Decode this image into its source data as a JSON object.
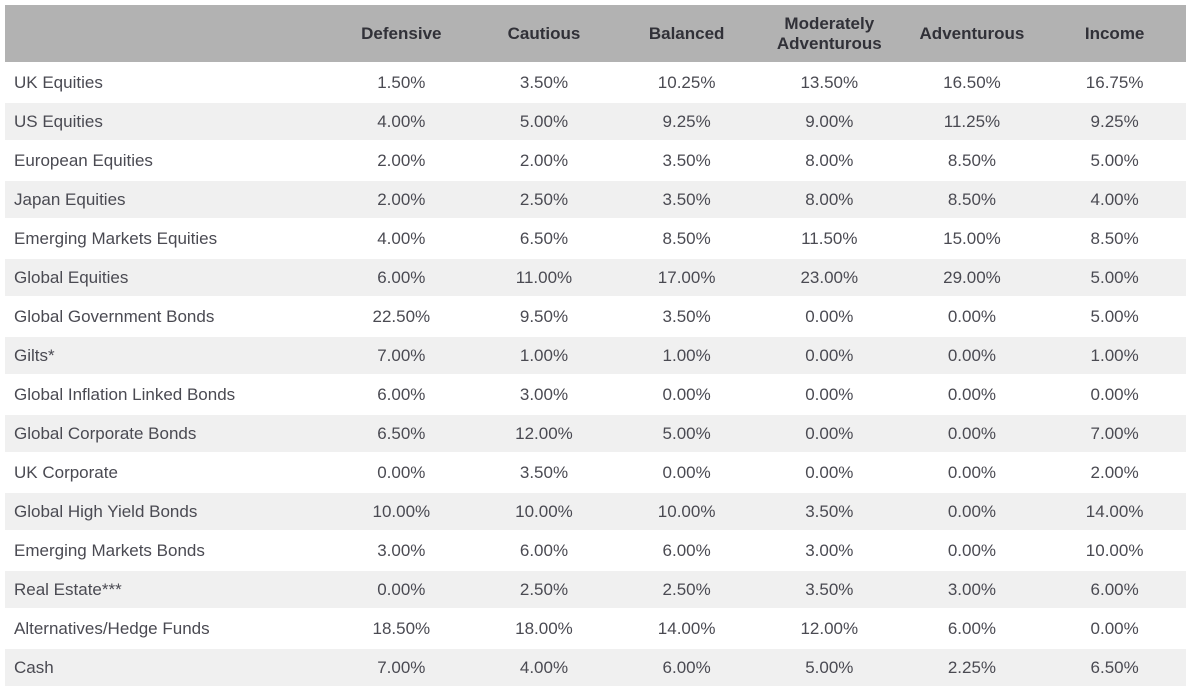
{
  "table": {
    "columns": [
      "Defensive",
      "Cautious",
      "Balanced",
      "Moderately Adventurous",
      "Adventurous",
      "Income"
    ],
    "rows": [
      {
        "label": "UK Equities",
        "values": [
          "1.50%",
          "3.50%",
          "10.25%",
          "13.50%",
          "16.50%",
          "16.75%"
        ]
      },
      {
        "label": "US Equities",
        "values": [
          "4.00%",
          "5.00%",
          "9.25%",
          "9.00%",
          "11.25%",
          "9.25%"
        ]
      },
      {
        "label": "European Equities",
        "values": [
          "2.00%",
          "2.00%",
          "3.50%",
          "8.00%",
          "8.50%",
          "5.00%"
        ]
      },
      {
        "label": "Japan Equities",
        "values": [
          "2.00%",
          "2.50%",
          "3.50%",
          "8.00%",
          "8.50%",
          "4.00%"
        ]
      },
      {
        "label": "Emerging Markets Equities",
        "values": [
          "4.00%",
          "6.50%",
          "8.50%",
          "11.50%",
          "15.00%",
          "8.50%"
        ]
      },
      {
        "label": "Global Equities",
        "values": [
          "6.00%",
          "11.00%",
          "17.00%",
          "23.00%",
          "29.00%",
          "5.00%"
        ]
      },
      {
        "label": "Global Government Bonds",
        "values": [
          "22.50%",
          "9.50%",
          "3.50%",
          "0.00%",
          "0.00%",
          "5.00%"
        ]
      },
      {
        "label": "Gilts*",
        "values": [
          "7.00%",
          "1.00%",
          "1.00%",
          "0.00%",
          "0.00%",
          "1.00%"
        ]
      },
      {
        "label": "Global Inflation Linked Bonds",
        "values": [
          "6.00%",
          "3.00%",
          "0.00%",
          "0.00%",
          "0.00%",
          "0.00%"
        ]
      },
      {
        "label": "Global Corporate Bonds",
        "values": [
          "6.50%",
          "12.00%",
          "5.00%",
          "0.00%",
          "0.00%",
          "7.00%"
        ]
      },
      {
        "label": "UK Corporate",
        "values": [
          "0.00%",
          "3.50%",
          "0.00%",
          "0.00%",
          "0.00%",
          "2.00%"
        ]
      },
      {
        "label": "Global High Yield Bonds",
        "values": [
          "10.00%",
          "10.00%",
          "10.00%",
          "3.50%",
          "0.00%",
          "14.00%"
        ]
      },
      {
        "label": "Emerging Markets Bonds",
        "values": [
          "3.00%",
          "6.00%",
          "6.00%",
          "3.00%",
          "0.00%",
          "10.00%"
        ]
      },
      {
        "label": "Real Estate***",
        "values": [
          "0.00%",
          "2.50%",
          "2.50%",
          "3.50%",
          "3.00%",
          "6.00%"
        ]
      },
      {
        "label": "Alternatives/Hedge Funds",
        "values": [
          "18.50%",
          "18.00%",
          "14.00%",
          "12.00%",
          "6.00%",
          "0.00%"
        ]
      },
      {
        "label": "Cash",
        "values": [
          "7.00%",
          "4.00%",
          "6.00%",
          "5.00%",
          "2.25%",
          "6.50%"
        ]
      }
    ]
  },
  "colors": {
    "header_bg": "#b2b2b2",
    "header_text": "#313138",
    "row_bg": "#ffffff",
    "row_alt_bg": "#f0f0f0",
    "body_text": "#4a4a52"
  },
  "chart_data": {
    "type": "table",
    "title": "",
    "categories": [
      "Defensive",
      "Cautious",
      "Balanced",
      "Moderately Adventurous",
      "Adventurous",
      "Income"
    ],
    "series": [
      {
        "name": "UK Equities",
        "values": [
          1.5,
          3.5,
          10.25,
          13.5,
          16.5,
          16.75
        ]
      },
      {
        "name": "US Equities",
        "values": [
          4.0,
          5.0,
          9.25,
          9.0,
          11.25,
          9.25
        ]
      },
      {
        "name": "European Equities",
        "values": [
          2.0,
          2.0,
          3.5,
          8.0,
          8.5,
          5.0
        ]
      },
      {
        "name": "Japan Equities",
        "values": [
          2.0,
          2.5,
          3.5,
          8.0,
          8.5,
          4.0
        ]
      },
      {
        "name": "Emerging Markets Equities",
        "values": [
          4.0,
          6.5,
          8.5,
          11.5,
          15.0,
          8.5
        ]
      },
      {
        "name": "Global Equities",
        "values": [
          6.0,
          11.0,
          17.0,
          23.0,
          29.0,
          5.0
        ]
      },
      {
        "name": "Global Government Bonds",
        "values": [
          22.5,
          9.5,
          3.5,
          0.0,
          0.0,
          5.0
        ]
      },
      {
        "name": "Gilts*",
        "values": [
          7.0,
          1.0,
          1.0,
          0.0,
          0.0,
          1.0
        ]
      },
      {
        "name": "Global Inflation Linked Bonds",
        "values": [
          6.0,
          3.0,
          0.0,
          0.0,
          0.0,
          0.0
        ]
      },
      {
        "name": "Global Corporate Bonds",
        "values": [
          6.5,
          12.0,
          5.0,
          0.0,
          0.0,
          7.0
        ]
      },
      {
        "name": "UK Corporate",
        "values": [
          0.0,
          3.5,
          0.0,
          0.0,
          0.0,
          2.0
        ]
      },
      {
        "name": "Global High Yield Bonds",
        "values": [
          10.0,
          10.0,
          10.0,
          3.5,
          0.0,
          14.0
        ]
      },
      {
        "name": "Emerging Markets Bonds",
        "values": [
          3.0,
          6.0,
          6.0,
          3.0,
          0.0,
          10.0
        ]
      },
      {
        "name": "Real Estate***",
        "values": [
          0.0,
          2.5,
          2.5,
          3.5,
          3.0,
          6.0
        ]
      },
      {
        "name": "Alternatives/Hedge Funds",
        "values": [
          18.5,
          18.0,
          14.0,
          12.0,
          6.0,
          0.0
        ]
      },
      {
        "name": "Cash",
        "values": [
          7.0,
          4.0,
          6.0,
          5.0,
          2.25,
          6.5
        ]
      }
    ],
    "value_unit": "percent",
    "layout": "row labels are asset classes, columns are portfolio risk profiles, zebra striping, gray header band"
  }
}
